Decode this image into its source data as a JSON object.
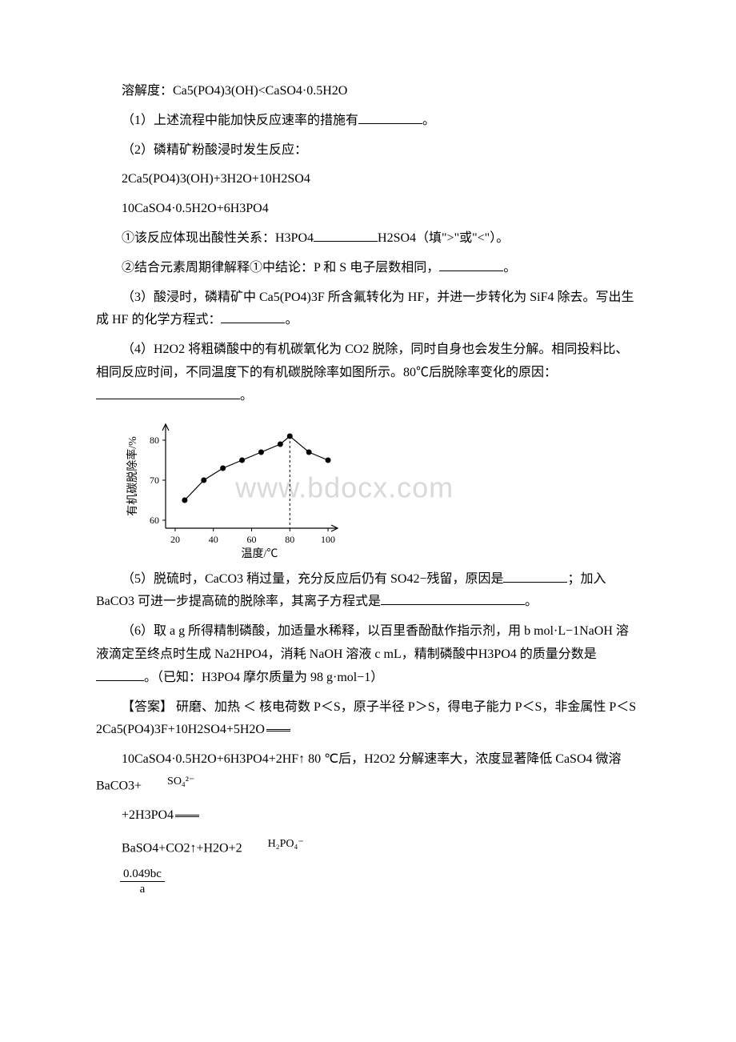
{
  "lines": {
    "l1": "溶解度：Ca5(PO4)3(OH)<CaSO4·0.5H2O",
    "l2_pre": "（1）上述流程中能加快反应速率的措施有",
    "l2_post": "。",
    "l3": "（2）磷精矿粉酸浸时发生反应：",
    "l4": "2Ca5(PO4)3(OH)+3H2O+10H2SO4",
    "l5": "10CaSO4·0.5H2O+6H3PO4",
    "l6_pre": "①该反应体现出酸性关系：H3PO4",
    "l6_post": "H2SO4（填\">\"或\"<\"）。",
    "l7_pre": "②结合元素周期律解释①中结论：P 和 S 电子层数相同，",
    "l7_post": "。",
    "l8_pre": "（3）酸浸时，磷精矿中 Ca5(PO4)3F 所含氟转化为 HF，并进一步转化为 SiF4 除去。写出生成 HF 的化学方程式：",
    "l8_post": "。",
    "l9_pre": "（4）H2O2 将粗磷酸中的有机碳氧化为 CO2 脱除，同时自身也会发生分解。相同投料比、相同反应时间，不同温度下的有机碳脱除率如图所示。80℃后脱除率变化的原因：",
    "l9_post": "。",
    "l10_pre": "（5）脱硫时，CaCO3 稍过量，充分反应后仍有 SO42−残留，原因是",
    "l10_mid": "；加入 BaCO3 可进一步提高硫的脱除率，其离子方程式是",
    "l10_post": "。",
    "l11_pre": "（6）取 a g 所得精制磷酸，加适量水稀释，以百里香酚酞作指示剂，用 b mol·L−1NaOH 溶液滴定至终点时生成 Na2HPO4，消耗 NaOH 溶液 c mL，精制磷酸中H3PO4 的质量分数是",
    "l11_post": "。（已知：H3PO4 摩尔质量为 98 g·mol−1）",
    "l12": "【答案】 研磨、加热 ＜ 核电荷数 P＜S，原子半径 P＞S，得电子能力 P＜S，非金属性 P＜S 2Ca5(PO4)3F+10H2SO4+5H2O",
    "l13_a": "10CaSO4·0.5H2O+6H3PO4+2HF↑ 80 ℃后，H2O2 分解速率大，浓度显著降低",
    "l13_b": "CaSO4 微溶 BaCO3+",
    "l14": "+2H3PO4",
    "l15": "BaSO4+CO2↑+H2O+2",
    "frac_num": "0.049bc",
    "frac_den": "a",
    "so4": "SO₄²⁻",
    "h2po4": "H₂PO₄⁻"
  },
  "chart": {
    "type": "line-scatter",
    "xlabel": "温度/℃",
    "ylabel": "有机碳脱除率/%",
    "x_ticks": [
      20,
      40,
      60,
      80,
      100
    ],
    "y_ticks": [
      60,
      70,
      80
    ],
    "x_range": [
      15,
      105
    ],
    "y_range": [
      58,
      84
    ],
    "points_x": [
      25,
      35,
      45,
      55,
      65,
      75,
      80,
      90,
      100
    ],
    "points_y": [
      65,
      70,
      73,
      75,
      77,
      79,
      81,
      77,
      75
    ],
    "marker": "circle",
    "marker_size": 3.5,
    "line_color": "#000000",
    "line_width": 1.2,
    "axis_color": "#000000",
    "tick_fontsize": 12,
    "label_fontsize": 14,
    "dashed_x": 80,
    "background_color": "#ffffff"
  },
  "watermark": {
    "text": "www.bdocx.com",
    "color": "#d9d9d9",
    "fontsize": 36
  }
}
